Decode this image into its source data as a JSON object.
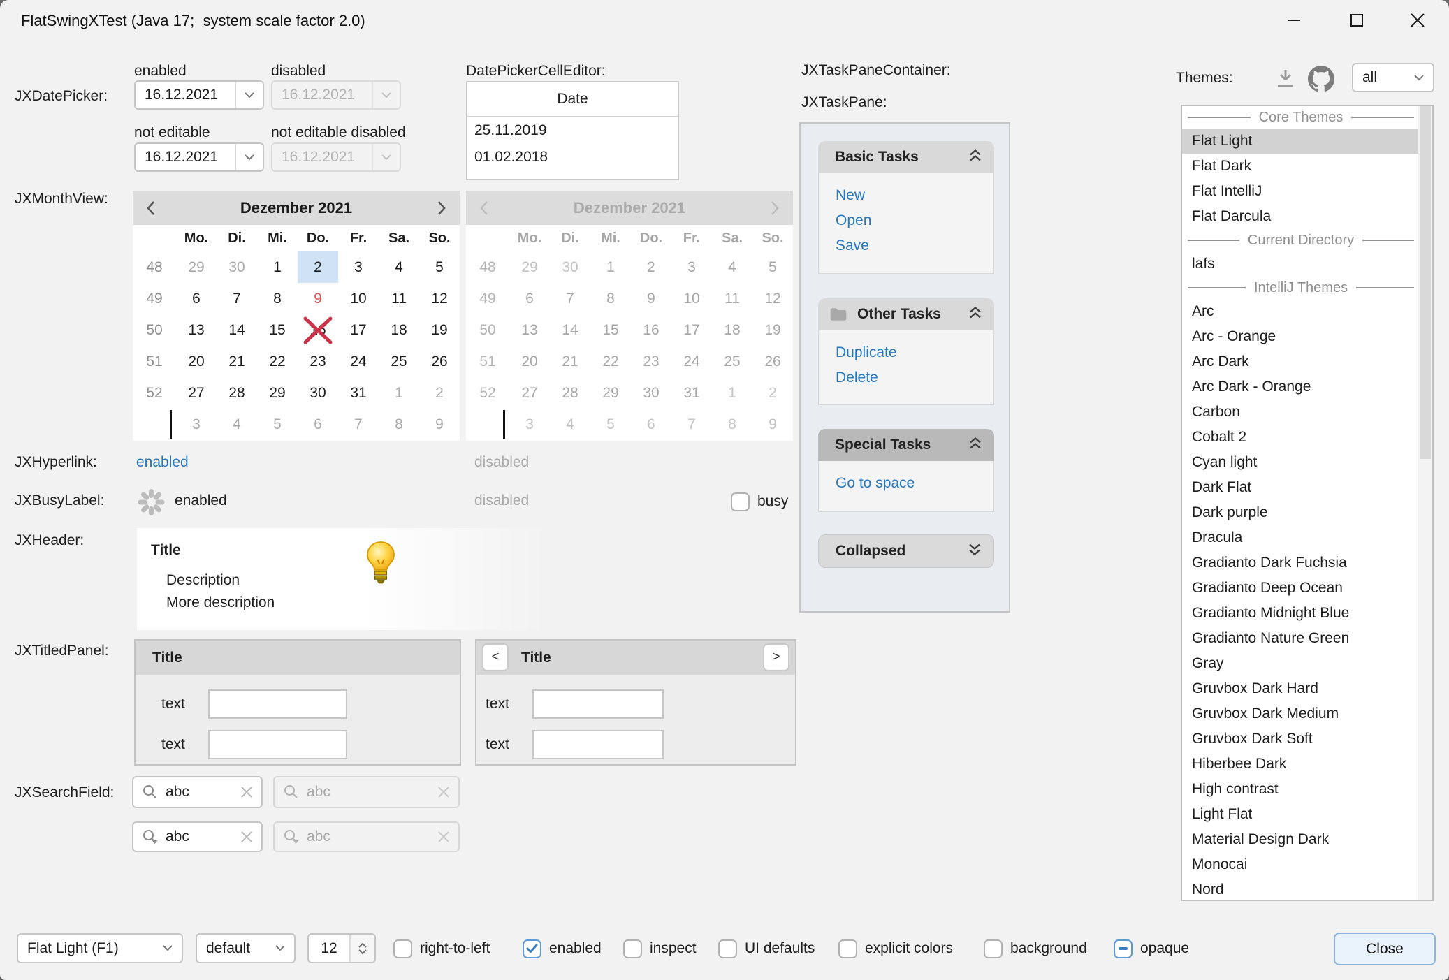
{
  "window": {
    "title": "FlatSwingXTest (Java 17;  system scale factor 2.0)"
  },
  "labels": {
    "datepicker": "JXDatePicker:",
    "monthview": "JXMonthView:",
    "hyperlink": "JXHyperlink:",
    "busylabel": "JXBusyLabel:",
    "header": "JXHeader:",
    "titledpanel": "JXTitledPanel:",
    "searchfield": "JXSearchField:",
    "taskpanecontainer": "JXTaskPaneContainer:",
    "taskpane": "JXTaskPane:",
    "celleditor": "DatePickerCellEditor:"
  },
  "datepicker": {
    "value": "16.12.2021",
    "enabled_label": "enabled",
    "disabled_label": "disabled",
    "not_editable_label": "not editable",
    "not_editable_disabled_label": "not editable disabled"
  },
  "cell_editor": {
    "header": "Date",
    "rows": [
      "25.11.2019",
      "01.02.2018"
    ]
  },
  "monthview": {
    "title": "Dezember 2021",
    "day_headers": [
      "Mo.",
      "Di.",
      "Mi.",
      "Do.",
      "Fr.",
      "Sa.",
      "So."
    ],
    "weeks": [
      {
        "week": "48",
        "days": [
          {
            "d": "29",
            "muted": true
          },
          {
            "d": "30",
            "muted": true
          },
          {
            "d": "1"
          },
          {
            "d": "2",
            "selected": true
          },
          {
            "d": "3"
          },
          {
            "d": "4"
          },
          {
            "d": "5"
          }
        ]
      },
      {
        "week": "49",
        "days": [
          {
            "d": "6"
          },
          {
            "d": "7"
          },
          {
            "d": "8"
          },
          {
            "d": "9",
            "red": true
          },
          {
            "d": "10"
          },
          {
            "d": "11"
          },
          {
            "d": "12"
          }
        ]
      },
      {
        "week": "50",
        "days": [
          {
            "d": "13"
          },
          {
            "d": "14"
          },
          {
            "d": "15"
          },
          {
            "d": "16",
            "crossed": true
          },
          {
            "d": "17"
          },
          {
            "d": "18"
          },
          {
            "d": "19"
          }
        ]
      },
      {
        "week": "51",
        "days": [
          {
            "d": "20"
          },
          {
            "d": "21"
          },
          {
            "d": "22"
          },
          {
            "d": "23"
          },
          {
            "d": "24"
          },
          {
            "d": "25"
          },
          {
            "d": "26"
          }
        ]
      },
      {
        "week": "52",
        "days": [
          {
            "d": "27"
          },
          {
            "d": "28"
          },
          {
            "d": "29"
          },
          {
            "d": "30"
          },
          {
            "d": "31"
          },
          {
            "d": "1",
            "muted": true
          },
          {
            "d": "2",
            "muted": true
          }
        ]
      },
      {
        "week": "",
        "caret": true,
        "days": [
          {
            "d": "3",
            "muted": true
          },
          {
            "d": "4",
            "muted": true
          },
          {
            "d": "5",
            "muted": true
          },
          {
            "d": "6",
            "muted": true
          },
          {
            "d": "7",
            "muted": true
          },
          {
            "d": "8",
            "muted": true
          },
          {
            "d": "9",
            "muted": true
          }
        ]
      }
    ]
  },
  "hyperlink": {
    "enabled_label": "enabled",
    "disabled_label": "disabled"
  },
  "busy": {
    "enabled_label": "enabled",
    "disabled_label": "disabled",
    "busy_label": "busy"
  },
  "header_panel": {
    "title": "Title",
    "description": "Description",
    "more": "More description"
  },
  "titled_panel": {
    "title": "Title",
    "field_label": "text",
    "prev": "<",
    "next": ">"
  },
  "searchfield": {
    "value": "abc"
  },
  "taskpane": {
    "panes": [
      {
        "title": "Basic Tasks",
        "links": [
          "New",
          "Open",
          "Save"
        ],
        "collapsed": false,
        "special": false,
        "folder_icon": false
      },
      {
        "title": "Other Tasks",
        "links": [
          "Duplicate",
          "Delete"
        ],
        "collapsed": false,
        "special": false,
        "folder_icon": true
      },
      {
        "title": "Special Tasks",
        "links": [
          "Go to space"
        ],
        "collapsed": false,
        "special": true,
        "folder_icon": false
      },
      {
        "title": "Collapsed",
        "links": [],
        "collapsed": true,
        "special": false,
        "folder_icon": false
      }
    ]
  },
  "themes": {
    "label": "Themes:",
    "filter_value": "all",
    "items": [
      {
        "type": "separator",
        "label": "Core Themes"
      },
      {
        "type": "item",
        "label": "Flat Light",
        "selected": true
      },
      {
        "type": "item",
        "label": "Flat Dark"
      },
      {
        "type": "item",
        "label": "Flat IntelliJ"
      },
      {
        "type": "item",
        "label": "Flat Darcula"
      },
      {
        "type": "separator",
        "label": "Current Directory"
      },
      {
        "type": "item",
        "label": "lafs"
      },
      {
        "type": "separator",
        "label": "IntelliJ Themes"
      },
      {
        "type": "item",
        "label": "Arc"
      },
      {
        "type": "item",
        "label": "Arc - Orange"
      },
      {
        "type": "item",
        "label": "Arc Dark"
      },
      {
        "type": "item",
        "label": "Arc Dark - Orange"
      },
      {
        "type": "item",
        "label": "Carbon"
      },
      {
        "type": "item",
        "label": "Cobalt 2"
      },
      {
        "type": "item",
        "label": "Cyan light"
      },
      {
        "type": "item",
        "label": "Dark Flat"
      },
      {
        "type": "item",
        "label": "Dark purple"
      },
      {
        "type": "item",
        "label": "Dracula"
      },
      {
        "type": "item",
        "label": "Gradianto Dark Fuchsia"
      },
      {
        "type": "item",
        "label": "Gradianto Deep Ocean"
      },
      {
        "type": "item",
        "label": "Gradianto Midnight Blue"
      },
      {
        "type": "item",
        "label": "Gradianto Nature Green"
      },
      {
        "type": "item",
        "label": "Gray"
      },
      {
        "type": "item",
        "label": "Gruvbox Dark Hard"
      },
      {
        "type": "item",
        "label": "Gruvbox Dark Medium"
      },
      {
        "type": "item",
        "label": "Gruvbox Dark Soft"
      },
      {
        "type": "item",
        "label": "Hiberbee Dark"
      },
      {
        "type": "item",
        "label": "High contrast"
      },
      {
        "type": "item",
        "label": "Light Flat"
      },
      {
        "type": "item",
        "label": "Material Design Dark"
      },
      {
        "type": "item",
        "label": "Monocai"
      },
      {
        "type": "item",
        "label": "Nord"
      }
    ]
  },
  "bottom": {
    "laf_combo": "Flat Light (F1)",
    "font_combo": "default",
    "font_size": "12",
    "checkboxes": [
      {
        "label": "right-to-left",
        "state": "unchecked"
      },
      {
        "label": "enabled",
        "state": "checked"
      },
      {
        "label": "inspect",
        "state": "unchecked"
      },
      {
        "label": "UI defaults",
        "state": "unchecked"
      },
      {
        "label": "explicit colors",
        "state": "unchecked"
      },
      {
        "label": "background",
        "state": "unchecked"
      },
      {
        "label": "opaque",
        "state": "indeterminate"
      }
    ],
    "close_label": "Close"
  },
  "colors": {
    "accent": "#2878be",
    "selection_bg": "#cfe3f5",
    "red_day": "#e04f4f",
    "cross_red": "#c9334a",
    "window_bg": "#f2f2f2",
    "taskpane_bg": "#e9edf1"
  }
}
